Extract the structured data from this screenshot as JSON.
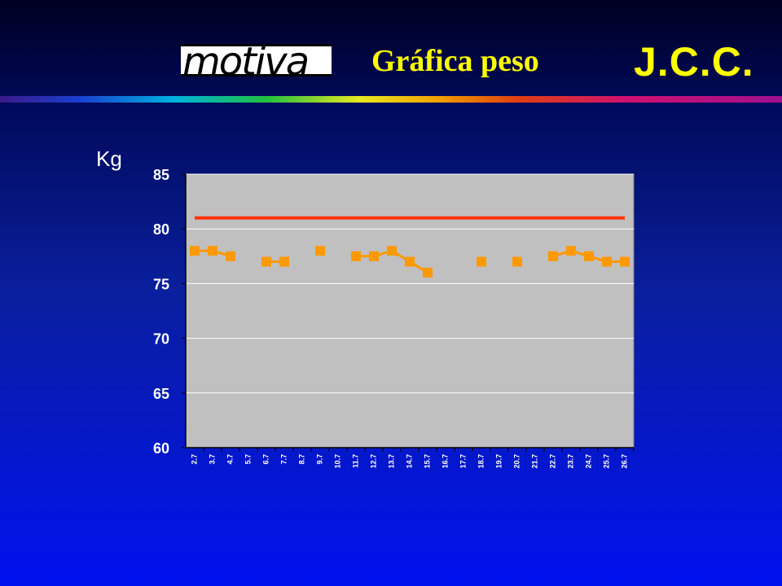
{
  "header": {
    "logo_text": "motiva",
    "title": "Gráfica peso",
    "initials": "J.C.C."
  },
  "colors": {
    "title": "#ffff00",
    "plot_bg": "#c0c0c0",
    "markers": "#ff9900",
    "target_line": "#ff3300"
  },
  "chart_data": {
    "type": "line",
    "ylabel": "Kg",
    "ylim": [
      60,
      85
    ],
    "yticks": [
      60,
      65,
      70,
      75,
      80,
      85
    ],
    "grid": true,
    "categories": [
      "2.7",
      "3.7",
      "4.7",
      "5.7",
      "6.7",
      "7.7",
      "8.7",
      "9.7",
      "10.7",
      "11.7",
      "12.7",
      "13.7",
      "14.7",
      "15.7",
      "16.7",
      "17.7",
      "18.7",
      "19.7",
      "20.7",
      "21.7",
      "22.7",
      "23.7",
      "24.7",
      "25.7",
      "26.7"
    ],
    "series": [
      {
        "style": "markers",
        "values": [
          78,
          78,
          77.5,
          null,
          77,
          77,
          null,
          78,
          null,
          77.5,
          77.5,
          78,
          77,
          76,
          null,
          null,
          77,
          null,
          77,
          null,
          77.5,
          78,
          77.5,
          77,
          77
        ]
      },
      {
        "style": "line",
        "values": [
          81,
          81,
          81,
          81,
          81,
          81,
          81,
          81,
          81,
          81,
          81,
          81,
          81,
          81,
          81,
          81,
          81,
          81,
          81,
          81,
          81,
          81,
          81,
          81,
          81
        ]
      }
    ]
  }
}
